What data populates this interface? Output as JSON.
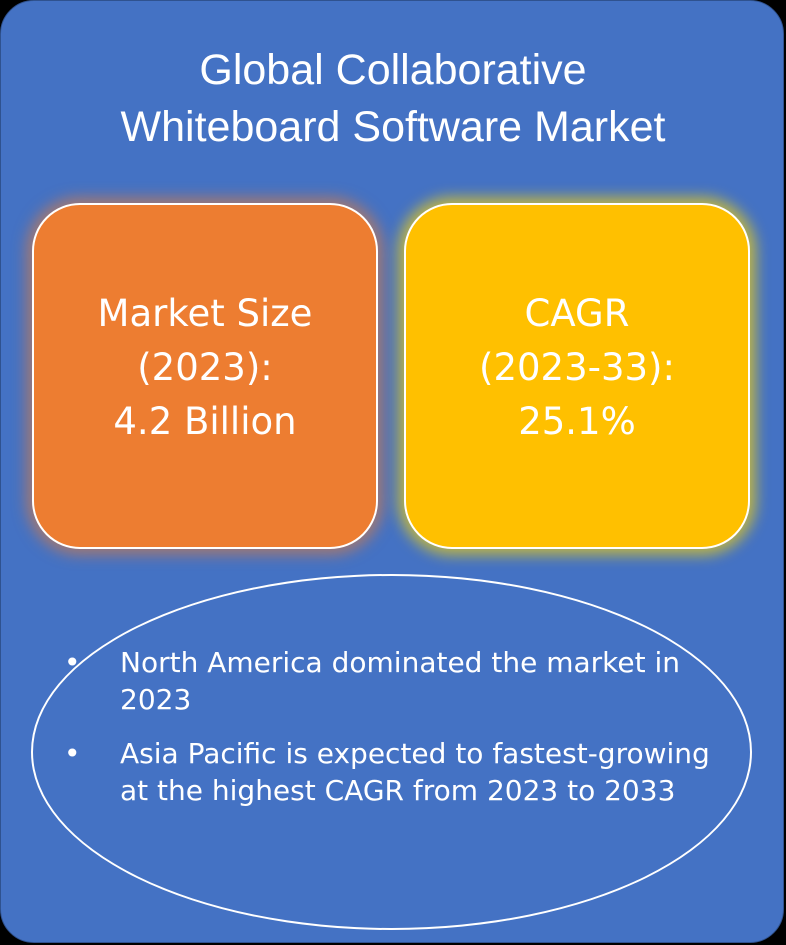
{
  "title": {
    "line1": "Global Collaborative",
    "line2": "Whiteboard Software Market"
  },
  "market_size": {
    "line1": "Market Size",
    "line2": "(2023):",
    "line3": "4.2 Billion",
    "color": "#ed7d31"
  },
  "cagr": {
    "line1": "CAGR",
    "line2": "(2023-33):",
    "line3": "25.1%",
    "color": "#ffc000"
  },
  "background_color": "#4472c4",
  "highlights": {
    "bullet_symbol": "•",
    "items": [
      "North America dominated the market in 2023",
      "Asia Pacific is expected to fastest-growing at the highest CAGR from 2023 to 2033"
    ]
  }
}
